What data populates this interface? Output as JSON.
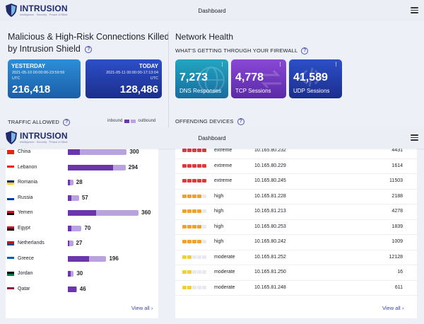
{
  "app": {
    "brand": "INTRUSION",
    "tagline": "Intelligence · Security · Peace of Mind",
    "page_title": "Dashboard"
  },
  "left": {
    "heading_line1": "Malicious & High-Risk Connections Killed",
    "heading_line2": "by Intrusion Shield",
    "yesterday": {
      "label": "YESTERDAY",
      "range": "2021-05-10 00:00:00-23:59:59",
      "tz": "UTC",
      "value": "216,418"
    },
    "today": {
      "label": "TODAY",
      "range": "2021-05-11 00:00:00-17:13:04",
      "tz": "UTC",
      "value": "128,486"
    },
    "traffic_label": "TRAFFIC ALLOWED",
    "legend_in": "inbound",
    "legend_out": "outbound",
    "view_all": "View all"
  },
  "right": {
    "title": "Network Health",
    "subtitle": "WHAT'S GETTING THROUGH YOUR FIREWALL",
    "tiles": [
      {
        "value": "7,273",
        "label": "DNS Responses"
      },
      {
        "value": "4,778",
        "label": "TCP Sessions"
      },
      {
        "value": "41,589",
        "label": "UDP Sessions"
      }
    ],
    "offending_label": "OFFENDING DEVICES",
    "view_all": "View all"
  },
  "countries": [
    {
      "name": "China",
      "value": "300",
      "total": 300,
      "inbound": 0.2
    },
    {
      "name": "Lebanon",
      "value": "294",
      "total": 294,
      "inbound": 0.78
    },
    {
      "name": "Romania",
      "value": "28",
      "total": 28,
      "inbound": 0.35
    },
    {
      "name": "Russia",
      "value": "57",
      "total": 57,
      "inbound": 0.3
    },
    {
      "name": "Yemen",
      "value": "360",
      "total": 360,
      "inbound": 0.4
    },
    {
      "name": "Egypt",
      "value": "70",
      "total": 70,
      "inbound": 0.25
    },
    {
      "name": "Netherlands",
      "value": "27",
      "total": 27,
      "inbound": 0.3
    },
    {
      "name": "Greece",
      "value": "196",
      "total": 196,
      "inbound": 0.55
    },
    {
      "name": "Jordan",
      "value": "30",
      "total": 30,
      "inbound": 0.5
    },
    {
      "name": "Qatar",
      "value": "46",
      "total": 46,
      "inbound": 0.9
    }
  ],
  "devices": [
    {
      "severity": "extreme",
      "ip": "10.165.80.232",
      "count": "4431"
    },
    {
      "severity": "extreme",
      "ip": "10.165.80.229",
      "count": "1614"
    },
    {
      "severity": "extreme",
      "ip": "10.165.80.245",
      "count": "11503"
    },
    {
      "severity": "high",
      "ip": "10.165.81.228",
      "count": "2188"
    },
    {
      "severity": "high",
      "ip": "10.165.81.213",
      "count": "4278"
    },
    {
      "severity": "high",
      "ip": "10.165.80.253",
      "count": "1839"
    },
    {
      "severity": "high",
      "ip": "10.165.80.242",
      "count": "1009"
    },
    {
      "severity": "moderate",
      "ip": "10.165.81.252",
      "count": "12128"
    },
    {
      "severity": "moderate",
      "ip": "10.165.81.250",
      "count": "16"
    },
    {
      "severity": "moderate",
      "ip": "10.165.81.248",
      "count": "611"
    }
  ],
  "colors": {
    "inbound": "#6a36a9",
    "outbound": "#b9a3df",
    "extreme": "#e0393b",
    "high": "#f5a02a",
    "moderate": "#f2cf3a",
    "dot_empty": "#e8e8ee"
  }
}
